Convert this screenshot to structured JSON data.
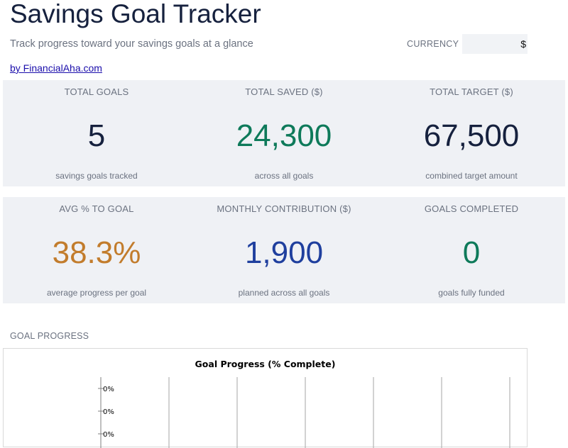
{
  "header": {
    "title": "Savings Goal Tracker",
    "subtitle": "Track progress toward your savings goals at a glance",
    "byline": "by FinancialAha.com",
    "currency_label": "CURRENCY",
    "currency_value": "$"
  },
  "kpis_row1": [
    {
      "label": "TOTAL GOALS",
      "value": "5",
      "sub": "savings goals tracked",
      "color": "#16213e"
    },
    {
      "label": "TOTAL SAVED ($)",
      "value": "24,300",
      "sub": "across all goals",
      "color": "#0e7a5a"
    },
    {
      "label": "TOTAL TARGET ($)",
      "value": "67,500",
      "sub": "combined target amount",
      "color": "#16213e"
    }
  ],
  "kpis_row2": [
    {
      "label": "AVG % TO GOAL",
      "value": "38.3%",
      "sub": "average progress per goal",
      "color": "#c27c2c"
    },
    {
      "label": "MONTHLY CONTRIBUTION ($)",
      "value": "1,900",
      "sub": "planned across all goals",
      "color": "#1f3f9e"
    },
    {
      "label": "GOALS COMPLETED",
      "value": "0",
      "sub": "goals fully funded",
      "color": "#0e7a5a"
    }
  ],
  "section": {
    "goal_progress_label": "GOAL PROGRESS"
  },
  "chart_data": {
    "type": "bar",
    "title": "Goal Progress (% Complete)",
    "xlabel": "",
    "ylabel": "",
    "y_tick_labels": [
      "0%",
      "0%",
      "0%"
    ],
    "gridlines_x": 6,
    "categories": [],
    "values": []
  }
}
